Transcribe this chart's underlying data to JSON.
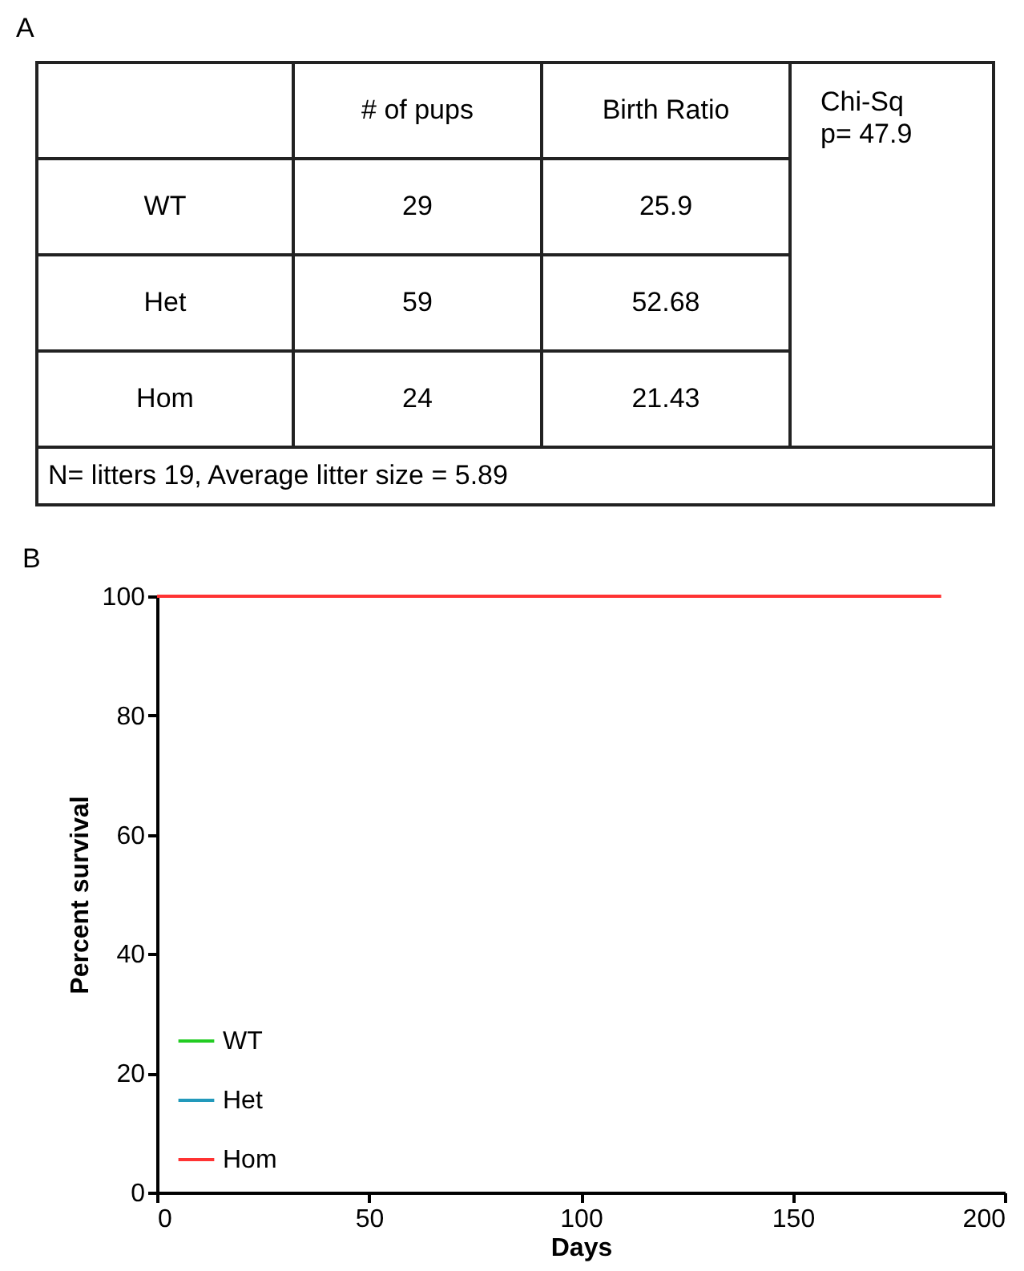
{
  "chart_data": [
    {
      "type": "other",
      "title": "A",
      "categories": [
        "# of pups",
        "Birth Ratio"
      ],
      "y_categories": [
        "WT",
        "Het",
        "Hom"
      ],
      "annotations": [
        "Chi-Sq\np= 47.9",
        "29",
        "25.9",
        "59",
        "52.68",
        "24",
        "21.43",
        "N= litters 19, Average litter size = 5.89"
      ]
    },
    {
      "type": "step",
      "title": "B",
      "xlabel": "Days",
      "ylabel": "Percent survival",
      "x": [
        0,
        185
      ],
      "series": [
        {
          "name": "WT",
          "color": "#22cc22",
          "values": [
            null,
            null
          ]
        },
        {
          "name": "Het",
          "color": "#2299bb",
          "values": [
            null,
            null
          ]
        },
        {
          "name": "Hom",
          "color": "#ff3333",
          "values": [
            100,
            100
          ]
        }
      ],
      "xlim": [
        0,
        200
      ],
      "xticks": [
        0,
        50,
        100,
        150,
        200
      ],
      "ylim": [
        0,
        100
      ],
      "yticks": [
        0,
        20,
        40,
        60,
        80,
        100
      ],
      "grid": false,
      "legend": "bottom left"
    }
  ]
}
